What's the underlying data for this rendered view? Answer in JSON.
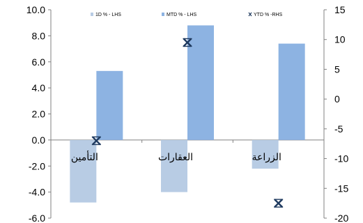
{
  "chart_data": {
    "type": "bar",
    "categories": [
      "التأمين",
      "العقارات",
      "الزراعة"
    ],
    "series": [
      {
        "name": "1D % - LHS",
        "kind": "bar",
        "axis": "left",
        "color": "#b8cce4",
        "values": [
          -4.8,
          -4.0,
          -2.2
        ]
      },
      {
        "name": "MTD % - LHS",
        "kind": "bar",
        "axis": "left",
        "color": "#8db3e2",
        "values": [
          5.3,
          8.8,
          7.4
        ]
      },
      {
        "name": "YTD % -RHS",
        "kind": "marker",
        "axis": "right",
        "color": "#1f3a5f",
        "values": [
          -7.0,
          9.5,
          -17.5
        ]
      }
    ],
    "left_axis": {
      "ylim": [
        -6,
        10
      ],
      "ticks": [
        "10.0",
        "8.0",
        "6.0",
        "4.0",
        "2.0",
        "0.0",
        "-2.0",
        "-4.0",
        "-6.0"
      ]
    },
    "right_axis": {
      "ylim": [
        -20,
        15
      ],
      "ticks": [
        "15",
        "10",
        "5",
        "0",
        "-5",
        "-10",
        "-15",
        "-20"
      ]
    },
    "grid": false,
    "legend": "top"
  }
}
